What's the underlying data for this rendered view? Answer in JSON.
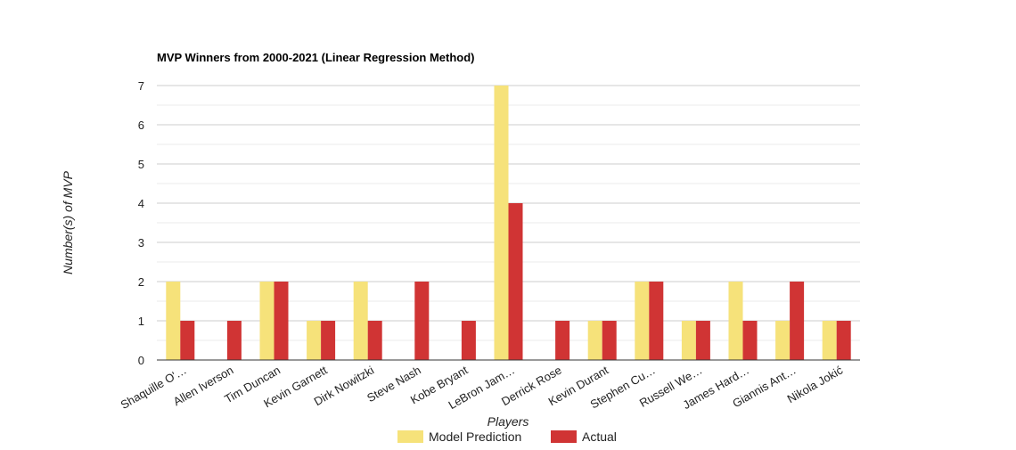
{
  "chart_data": {
    "type": "bar",
    "title": "MVP Winners from 2000-2021 (Linear Regression Method)",
    "xlabel": "Players",
    "ylabel": "Number(s) of MVP",
    "categories": [
      "Shaquille O'…",
      "Allen Iverson",
      "Tim Duncan",
      "Kevin Garnett",
      "Dirk Nowitzki",
      "Steve Nash",
      "Kobe Bryant",
      "LeBron Jam…",
      "Derrick Rose",
      "Kevin Durant",
      "Stephen Cu…",
      "Russell We…",
      "James Hard…",
      "Giannis Ant…",
      "Nikola Jokić"
    ],
    "series": [
      {
        "name": "Model Prediction",
        "color": "#f6e27a",
        "values": [
          2,
          0,
          2,
          1,
          2,
          0,
          0,
          7,
          0,
          1,
          2,
          1,
          2,
          1,
          1
        ]
      },
      {
        "name": "Actual",
        "color": "#d03434",
        "values": [
          1,
          1,
          2,
          1,
          1,
          2,
          1,
          4,
          1,
          1,
          2,
          1,
          1,
          2,
          1
        ]
      }
    ],
    "ylim": [
      0,
      7
    ],
    "yticks": [
      "0",
      "1",
      "2",
      "3",
      "4",
      "5",
      "6",
      "7"
    ],
    "grid": true,
    "legend": "bottom"
  }
}
